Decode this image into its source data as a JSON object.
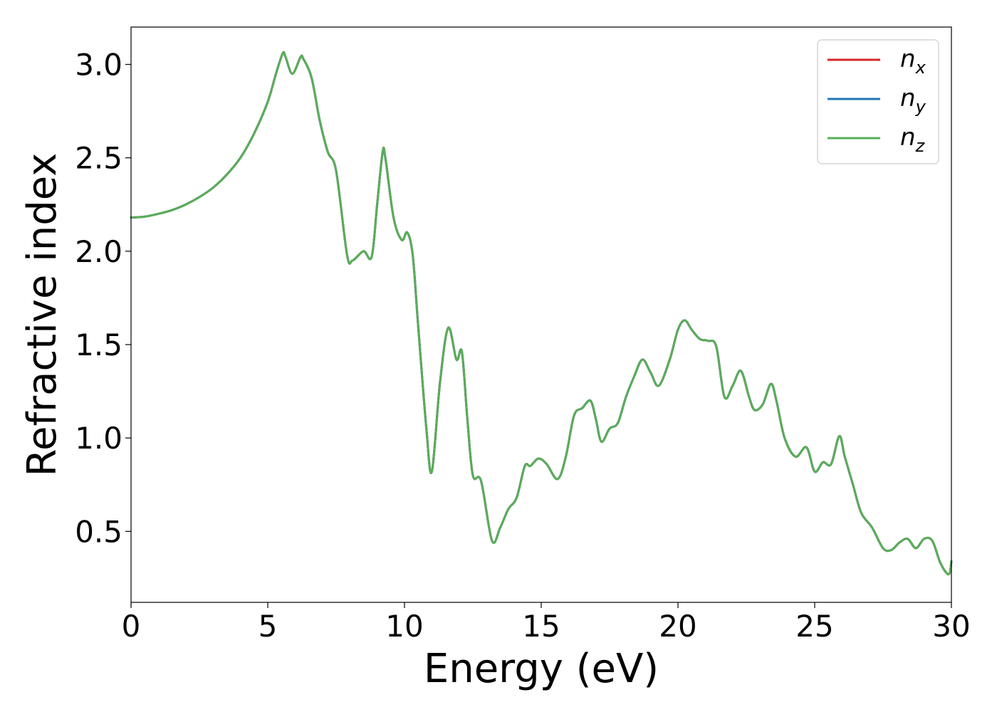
{
  "chart_data": {
    "type": "line",
    "xlabel": "Energy (eV)",
    "ylabel": "Refractive index",
    "xlim": [
      0,
      30
    ],
    "ylim": [
      0.12,
      3.2
    ],
    "xticks": [
      "0",
      "5",
      "10",
      "15",
      "20",
      "25",
      "30"
    ],
    "yticks": [
      "0.5",
      "1.0",
      "1.5",
      "2.0",
      "2.5",
      "3.0"
    ],
    "grid": false,
    "legend_position": "top-right",
    "series": [
      {
        "name": "n_x",
        "legend_base": "n",
        "legend_sub": "x",
        "color": "#d62728",
        "x": [
          0,
          0.5,
          1,
          1.5,
          2,
          2.5,
          3,
          3.5,
          4,
          4.5,
          5,
          5.3,
          5.55,
          5.65,
          5.9,
          6.2,
          6.3,
          6.6,
          6.9,
          7.2,
          7.5,
          7.9,
          8.1,
          8.5,
          8.8,
          9.0,
          9.2,
          9.3,
          9.6,
          9.9,
          10.1,
          10.3,
          10.5,
          10.8,
          11.0,
          11.3,
          11.6,
          11.9,
          12.1,
          12.3,
          12.5,
          12.8,
          13.2,
          13.5,
          13.8,
          14.1,
          14.4,
          14.6,
          14.9,
          15.2,
          15.6,
          15.9,
          16.2,
          16.5,
          16.8,
          17.0,
          17.2,
          17.5,
          17.8,
          18.1,
          18.4,
          18.7,
          19.0,
          19.3,
          19.7,
          20.0,
          20.25,
          20.5,
          20.8,
          21.1,
          21.4,
          21.7,
          22.0,
          22.3,
          22.6,
          22.8,
          23.1,
          23.4,
          23.6,
          23.9,
          24.3,
          24.7,
          25.0,
          25.3,
          25.6,
          25.9,
          26.1,
          26.4,
          26.7,
          27.1,
          27.5,
          27.8,
          28.1,
          28.4,
          28.7,
          29.0,
          29.3,
          29.6,
          29.9,
          30.0
        ],
        "y": [
          2.18,
          2.185,
          2.2,
          2.22,
          2.25,
          2.29,
          2.34,
          2.41,
          2.5,
          2.63,
          2.8,
          2.95,
          3.06,
          3.04,
          2.95,
          3.04,
          3.03,
          2.93,
          2.7,
          2.53,
          2.43,
          1.98,
          1.95,
          2.0,
          1.97,
          2.25,
          2.53,
          2.5,
          2.18,
          2.06,
          2.1,
          1.98,
          1.6,
          1.05,
          0.82,
          1.3,
          1.59,
          1.42,
          1.46,
          1.1,
          0.8,
          0.77,
          0.45,
          0.52,
          0.62,
          0.68,
          0.85,
          0.85,
          0.89,
          0.86,
          0.78,
          0.9,
          1.12,
          1.16,
          1.2,
          1.1,
          0.98,
          1.05,
          1.08,
          1.22,
          1.33,
          1.42,
          1.35,
          1.28,
          1.42,
          1.58,
          1.63,
          1.58,
          1.53,
          1.52,
          1.49,
          1.22,
          1.28,
          1.36,
          1.22,
          1.15,
          1.18,
          1.29,
          1.2,
          1.0,
          0.9,
          0.95,
          0.82,
          0.87,
          0.86,
          1.01,
          0.9,
          0.75,
          0.6,
          0.52,
          0.41,
          0.4,
          0.44,
          0.46,
          0.41,
          0.46,
          0.45,
          0.33,
          0.27,
          0.34
        ]
      },
      {
        "name": "n_y",
        "legend_base": "n",
        "legend_sub": "y",
        "color": "#1f77b4",
        "x": [
          0,
          0.5,
          1,
          1.5,
          2,
          2.5,
          3,
          3.5,
          4,
          4.5,
          5,
          5.3,
          5.55,
          5.65,
          5.9,
          6.2,
          6.3,
          6.6,
          6.9,
          7.2,
          7.5,
          7.9,
          8.1,
          8.5,
          8.8,
          9.0,
          9.2,
          9.3,
          9.6,
          9.9,
          10.1,
          10.3,
          10.5,
          10.8,
          11.0,
          11.3,
          11.6,
          11.9,
          12.1,
          12.3,
          12.5,
          12.8,
          13.2,
          13.5,
          13.8,
          14.1,
          14.4,
          14.6,
          14.9,
          15.2,
          15.6,
          15.9,
          16.2,
          16.5,
          16.8,
          17.0,
          17.2,
          17.5,
          17.8,
          18.1,
          18.4,
          18.7,
          19.0,
          19.3,
          19.7,
          20.0,
          20.25,
          20.5,
          20.8,
          21.1,
          21.4,
          21.7,
          22.0,
          22.3,
          22.6,
          22.8,
          23.1,
          23.4,
          23.6,
          23.9,
          24.3,
          24.7,
          25.0,
          25.3,
          25.6,
          25.9,
          26.1,
          26.4,
          26.7,
          27.1,
          27.5,
          27.8,
          28.1,
          28.4,
          28.7,
          29.0,
          29.3,
          29.6,
          29.9,
          30.0
        ],
        "y": [
          2.18,
          2.185,
          2.2,
          2.22,
          2.25,
          2.29,
          2.34,
          2.41,
          2.5,
          2.63,
          2.8,
          2.95,
          3.06,
          3.04,
          2.95,
          3.04,
          3.03,
          2.93,
          2.7,
          2.53,
          2.43,
          1.98,
          1.95,
          2.0,
          1.97,
          2.25,
          2.53,
          2.5,
          2.18,
          2.06,
          2.1,
          1.98,
          1.6,
          1.05,
          0.82,
          1.3,
          1.59,
          1.42,
          1.46,
          1.1,
          0.8,
          0.77,
          0.45,
          0.52,
          0.62,
          0.68,
          0.85,
          0.85,
          0.89,
          0.86,
          0.78,
          0.9,
          1.12,
          1.16,
          1.2,
          1.1,
          0.98,
          1.05,
          1.08,
          1.22,
          1.33,
          1.42,
          1.35,
          1.28,
          1.42,
          1.58,
          1.63,
          1.58,
          1.53,
          1.52,
          1.49,
          1.22,
          1.28,
          1.36,
          1.22,
          1.15,
          1.18,
          1.29,
          1.2,
          1.0,
          0.9,
          0.95,
          0.82,
          0.87,
          0.86,
          1.01,
          0.9,
          0.75,
          0.6,
          0.52,
          0.41,
          0.4,
          0.44,
          0.46,
          0.41,
          0.46,
          0.45,
          0.33,
          0.27,
          0.34
        ]
      },
      {
        "name": "n_z",
        "legend_base": "n",
        "legend_sub": "z",
        "color": "#5aad58",
        "x": [
          0,
          0.5,
          1,
          1.5,
          2,
          2.5,
          3,
          3.5,
          4,
          4.5,
          5,
          5.3,
          5.55,
          5.65,
          5.9,
          6.2,
          6.3,
          6.6,
          6.9,
          7.2,
          7.5,
          7.9,
          8.1,
          8.5,
          8.8,
          9.0,
          9.2,
          9.3,
          9.6,
          9.9,
          10.1,
          10.3,
          10.5,
          10.8,
          11.0,
          11.3,
          11.6,
          11.9,
          12.1,
          12.3,
          12.5,
          12.8,
          13.2,
          13.5,
          13.8,
          14.1,
          14.4,
          14.6,
          14.9,
          15.2,
          15.6,
          15.9,
          16.2,
          16.5,
          16.8,
          17.0,
          17.2,
          17.5,
          17.8,
          18.1,
          18.4,
          18.7,
          19.0,
          19.3,
          19.7,
          20.0,
          20.25,
          20.5,
          20.8,
          21.1,
          21.4,
          21.7,
          22.0,
          22.3,
          22.6,
          22.8,
          23.1,
          23.4,
          23.6,
          23.9,
          24.3,
          24.7,
          25.0,
          25.3,
          25.6,
          25.9,
          26.1,
          26.4,
          26.7,
          27.1,
          27.5,
          27.8,
          28.1,
          28.4,
          28.7,
          29.0,
          29.3,
          29.6,
          29.9,
          30.0
        ],
        "y": [
          2.18,
          2.185,
          2.2,
          2.22,
          2.25,
          2.29,
          2.34,
          2.41,
          2.5,
          2.63,
          2.8,
          2.95,
          3.06,
          3.04,
          2.95,
          3.04,
          3.03,
          2.93,
          2.7,
          2.53,
          2.43,
          1.98,
          1.95,
          2.0,
          1.97,
          2.25,
          2.53,
          2.5,
          2.18,
          2.06,
          2.1,
          1.98,
          1.6,
          1.05,
          0.82,
          1.3,
          1.59,
          1.42,
          1.46,
          1.1,
          0.8,
          0.77,
          0.45,
          0.52,
          0.62,
          0.68,
          0.85,
          0.85,
          0.89,
          0.86,
          0.78,
          0.9,
          1.12,
          1.16,
          1.2,
          1.1,
          0.98,
          1.05,
          1.08,
          1.22,
          1.33,
          1.42,
          1.35,
          1.28,
          1.42,
          1.58,
          1.63,
          1.58,
          1.53,
          1.52,
          1.49,
          1.22,
          1.28,
          1.36,
          1.22,
          1.15,
          1.18,
          1.29,
          1.2,
          1.0,
          0.9,
          0.95,
          0.82,
          0.87,
          0.86,
          1.01,
          0.9,
          0.75,
          0.6,
          0.52,
          0.41,
          0.4,
          0.44,
          0.46,
          0.41,
          0.46,
          0.45,
          0.33,
          0.27,
          0.34
        ]
      }
    ]
  }
}
